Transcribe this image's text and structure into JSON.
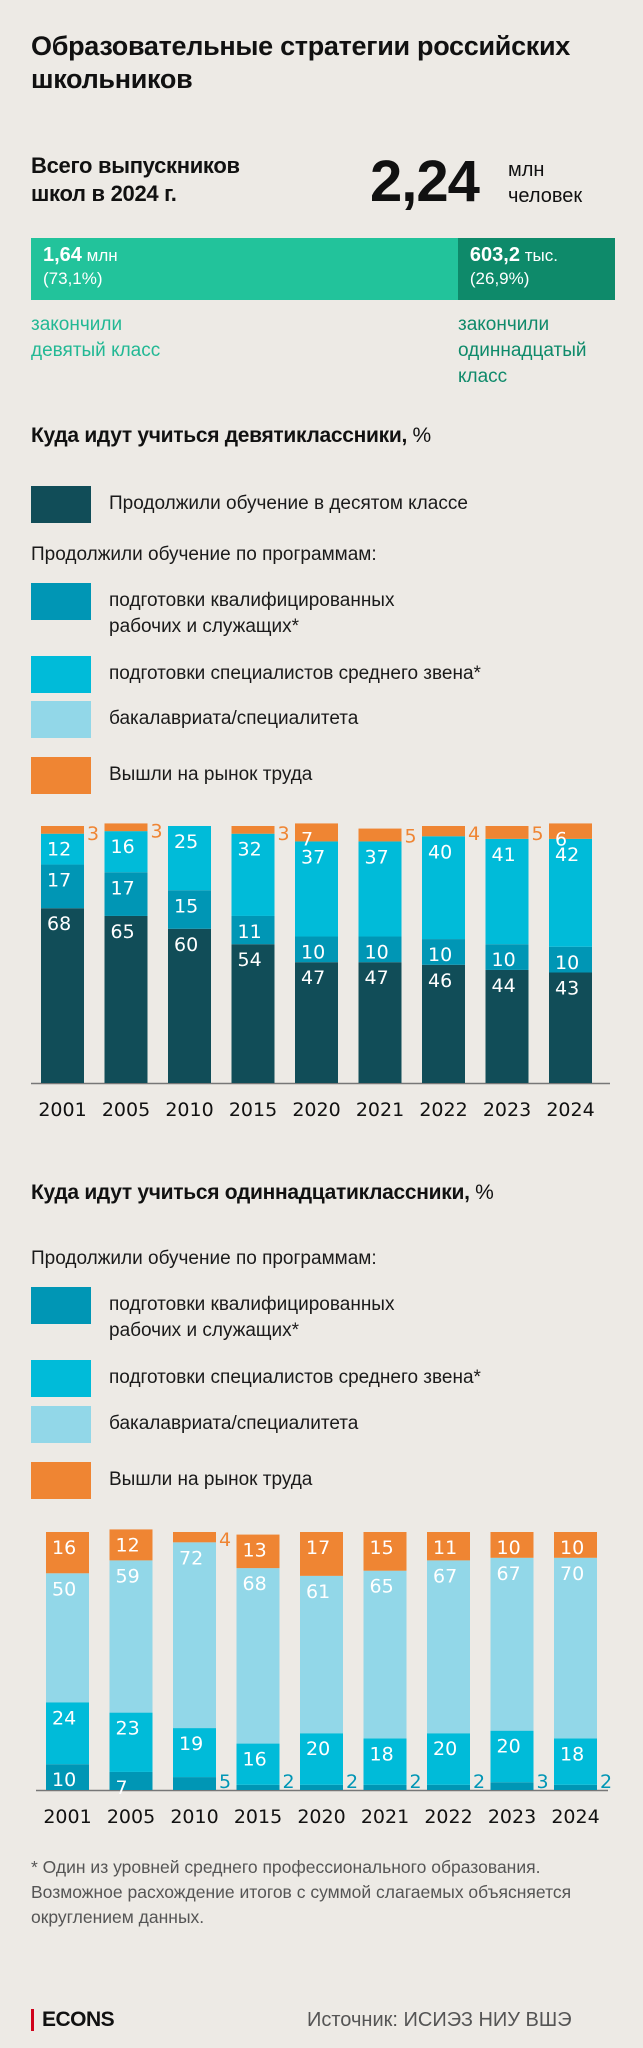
{
  "title": "Образовательные стратегии российских школьников",
  "summary": {
    "label_line1": "Всего выпускников",
    "label_line2": "школ в 2024 г.",
    "total_value": "2,24",
    "total_unit_line1": "млн",
    "total_unit_line2": "человек",
    "segments": [
      {
        "value": "1,64",
        "unit": "млн",
        "share_text": "(73,1%)",
        "share": 73.1,
        "color": "#22c39b",
        "caption_line1": "закончили",
        "caption_line2": "девятый класс",
        "caption_line3": "",
        "caption_color": "#22b894"
      },
      {
        "value": "603,2",
        "unit": "тыс.",
        "share_text": "(26,9%)",
        "share": 26.9,
        "color": "#0e8a6a",
        "caption_line1": "закончили",
        "caption_line2": "одиннадцатый",
        "caption_line3": "класс",
        "caption_color": "#0e8a6a"
      }
    ]
  },
  "colors": {
    "tenth_grade": "#114d58",
    "skilled_workers": "#0096b5",
    "mid_specialists": "#00bbd9",
    "bachelor": "#92d7e8",
    "labor_market": "#ef8533"
  },
  "section9": {
    "title": "Куда идут учиться девятиклассники,",
    "title_pct": " %",
    "legend_tenth": "Продолжили обучение в десятом классе",
    "legend_sub": "Продолжили обучение по программам:",
    "legend_skilled_1": "подготовки квалифицированных",
    "legend_skilled_2": "рабочих и служащих*",
    "legend_mid": "подготовки специалистов среднего звена*",
    "legend_bachelor": "бакалавриата/специалитета",
    "legend_labor": "Вышли на рынок труда"
  },
  "section11": {
    "title": "Куда идут учиться одиннадцатиклассники,",
    "title_pct": " %",
    "legend_sub": "Продолжили обучение по программам:",
    "legend_skilled_1": "подготовки квалифицированных",
    "legend_skilled_2": "рабочих и служащих*",
    "legend_mid": "подготовки специалистов среднего звена*",
    "legend_bachelor": "бакалавриата/специалитета",
    "legend_labor": "Вышли на рынок труда"
  },
  "chart_data": [
    {
      "type": "bar",
      "stacked": true,
      "title": "Куда идут учиться девятиклассники, %",
      "xlabel": "",
      "ylabel": "",
      "ylim": [
        0,
        100
      ],
      "categories": [
        "2001",
        "2005",
        "2010",
        "2015",
        "2020",
        "2021",
        "2022",
        "2023",
        "2024"
      ],
      "series": [
        {
          "name": "Продолжили обучение в десятом классе",
          "key": "tenth_grade",
          "values": [
            68,
            65,
            60,
            54,
            47,
            47,
            46,
            44,
            43
          ]
        },
        {
          "name": "подготовки квалифицированных рабочих и служащих*",
          "key": "skilled_workers",
          "values": [
            17,
            17,
            15,
            11,
            10,
            10,
            10,
            10,
            10
          ]
        },
        {
          "name": "подготовки специалистов среднего звена*",
          "key": "mid_specialists",
          "values": [
            12,
            16,
            25,
            32,
            37,
            37,
            40,
            41,
            42
          ]
        },
        {
          "name": "Вышли на рынок труда",
          "key": "labor_market",
          "values": [
            3,
            3,
            0,
            3,
            7,
            5,
            4,
            5,
            6
          ]
        }
      ],
      "legend": "top"
    },
    {
      "type": "bar",
      "stacked": true,
      "title": "Куда идут учиться одиннадцатиклассники, %",
      "xlabel": "",
      "ylabel": "",
      "ylim": [
        0,
        100
      ],
      "categories": [
        "2001",
        "2005",
        "2010",
        "2015",
        "2020",
        "2021",
        "2022",
        "2023",
        "2024"
      ],
      "series": [
        {
          "name": "подготовки квалифицированных рабочих и служащих*",
          "key": "skilled_workers",
          "values": [
            10,
            7,
            5,
            2,
            2,
            2,
            2,
            3,
            2
          ]
        },
        {
          "name": "подготовки специалистов среднего звена*",
          "key": "mid_specialists",
          "values": [
            24,
            23,
            19,
            16,
            20,
            18,
            20,
            20,
            18
          ]
        },
        {
          "name": "бакалавриата/специалитета",
          "key": "bachelor",
          "values": [
            50,
            59,
            72,
            68,
            61,
            65,
            67,
            67,
            70
          ]
        },
        {
          "name": "Вышли на рынок труда",
          "key": "labor_market",
          "values": [
            16,
            12,
            4,
            13,
            17,
            15,
            11,
            10,
            10
          ]
        }
      ],
      "legend": "top"
    }
  ],
  "footnote": "* Один из уровней среднего профессионального образования. Возможное расхождение итогов с суммой слагаемых объясняется округлением данных.",
  "brand": "ECONS",
  "source": "Источник: ИСИЭЗ НИУ ВШЭ"
}
